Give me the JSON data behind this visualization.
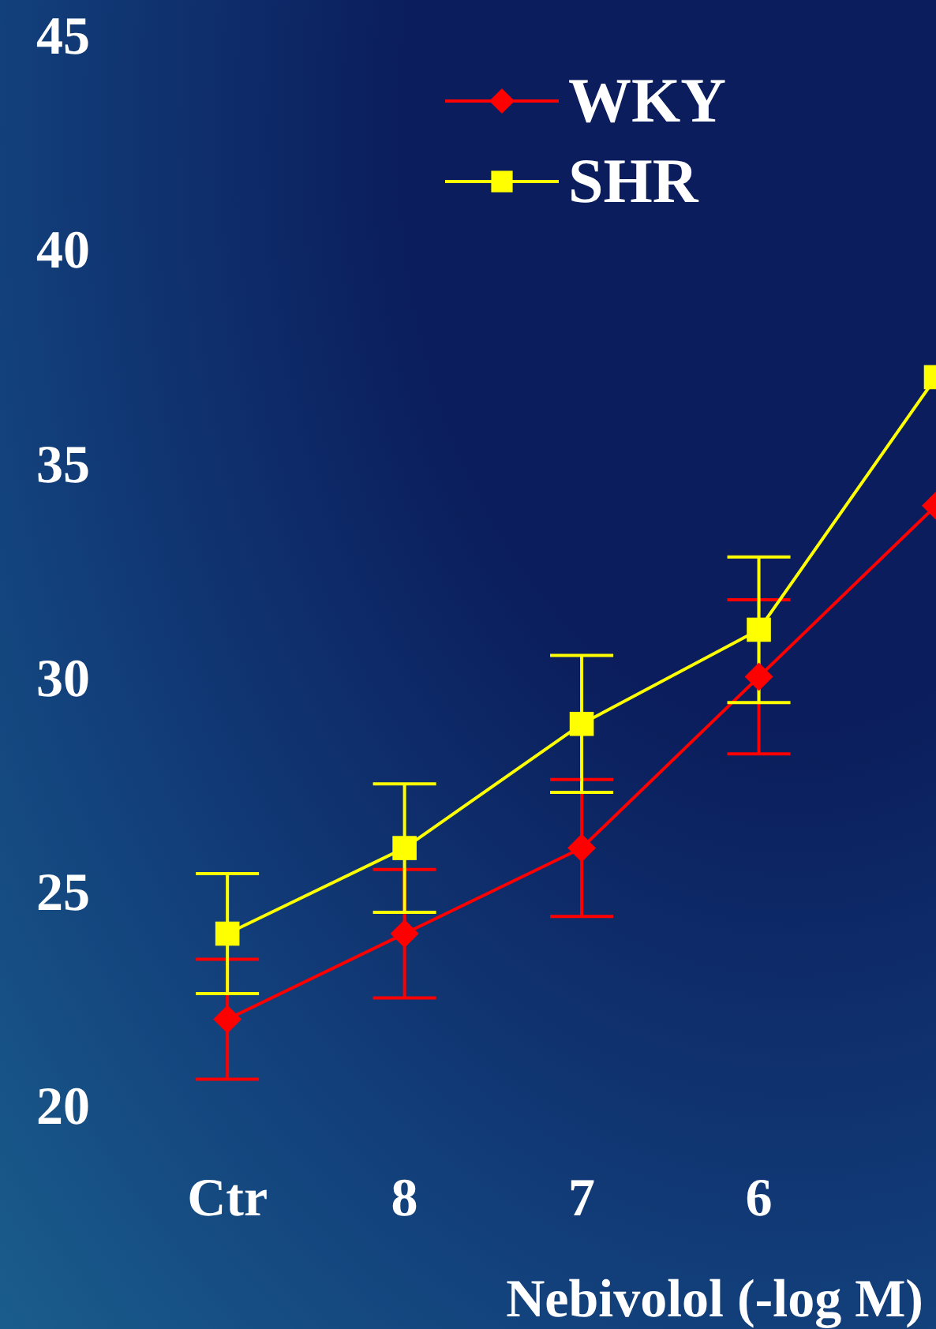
{
  "chart_data": {
    "type": "line",
    "xlabel": "Nebivolol (-log M)",
    "categories": [
      "Ctr",
      "8",
      "7",
      "6",
      null
    ],
    "series": [
      {
        "name": "WKY",
        "color": "#ff0000",
        "marker": "diamond",
        "values": [
          22,
          24,
          26,
          30,
          34
        ],
        "errors": [
          1.4,
          1.5,
          1.6,
          1.8,
          null
        ]
      },
      {
        "name": "SHR",
        "color": "#ffff00",
        "marker": "square",
        "values": [
          24,
          26,
          28.9,
          31.1,
          37
        ],
        "errors": [
          1.4,
          1.5,
          1.6,
          1.7,
          null
        ]
      }
    ],
    "ylim": [
      20,
      45
    ],
    "yticks": [
      20,
      25,
      30,
      35,
      40,
      45
    ],
    "grid": false,
    "legend": "top right"
  }
}
